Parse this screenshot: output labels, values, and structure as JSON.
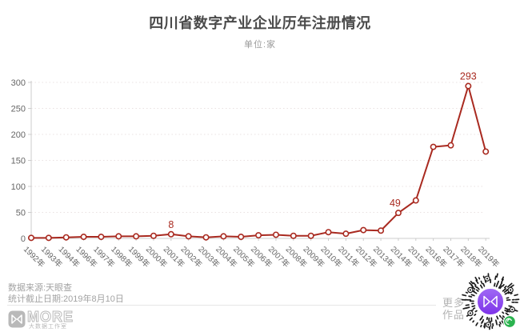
{
  "chart_data": {
    "type": "line",
    "title": "四川省数字产业企业历年注册情况",
    "unit_label": "单位:家",
    "xlabel": "",
    "ylabel": "",
    "categories": [
      "1992年",
      "1993年",
      "1994年",
      "1996年",
      "1997年",
      "1998年",
      "1999年",
      "2000年",
      "2001年",
      "2002年",
      "2003年",
      "2004年",
      "2005年",
      "2006年",
      "2007年",
      "2008年",
      "2009年",
      "2010年",
      "2011年",
      "2012年",
      "2013年",
      "2014年",
      "2015年",
      "2016年",
      "2017年",
      "2018年",
      "2019年"
    ],
    "values": [
      1,
      1,
      2,
      3,
      3,
      4,
      4,
      5,
      8,
      4,
      2,
      4,
      3,
      6,
      7,
      5,
      5,
      12,
      9,
      16,
      15,
      49,
      73,
      176,
      179,
      293,
      167
    ],
    "labeled_points": [
      {
        "category": "2001年",
        "value": 8
      },
      {
        "category": "2014年",
        "value": 49
      },
      {
        "category": "2018年",
        "value": 293
      }
    ],
    "ylim": [
      0,
      300
    ],
    "yticks": [
      0,
      50,
      100,
      150,
      200,
      250,
      300
    ],
    "grid": "dotted-horizontal",
    "legend": "none",
    "line_color": "#a92a20",
    "marker_fill": "#ffffff",
    "label_color": "#a92a20",
    "axis_color": "#cccccc",
    "axis_text_color": "#666666",
    "grid_color": "#e9e2e2"
  },
  "footer": {
    "source": "数据来源:天眼查",
    "deadline": "统计截止日期:2019年8月10日",
    "more_line1": "更多",
    "more_line2": "作品",
    "logo_word": "MORE",
    "logo_sub": "大数据工作室",
    "logo_gray": "#b9b9b9",
    "qr_center_color_top": "#a06af5",
    "qr_center_color_bottom": "#7d32e8",
    "qr_badge_color": "#2bb34f",
    "qr_dot_color": "#1c1c1c"
  }
}
